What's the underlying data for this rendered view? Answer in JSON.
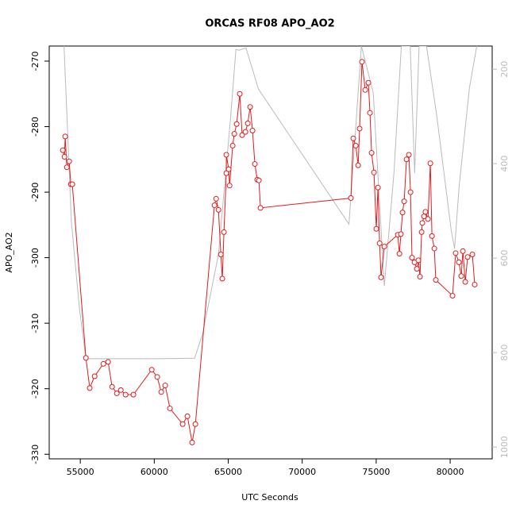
{
  "chart_data": {
    "type": "line",
    "title": "ORCAS RF08 APO_AO2",
    "xlabel": "UTC Seconds",
    "ylabel": "APO_AO2",
    "xlim": [
      52900,
      82840
    ],
    "xticks": [
      55000,
      60000,
      65000,
      70000,
      75000,
      80000
    ],
    "ylim": [
      -330.7,
      -267.7
    ],
    "yticks": [
      -270,
      -280,
      -290,
      -300,
      -310,
      -320,
      -330
    ],
    "y2lim": [
      1025,
      151
    ],
    "y2ticks": [
      200,
      400,
      600,
      800,
      1000
    ],
    "y2color": "#bbbbbb",
    "series": [
      {
        "color": "#bbbbbb",
        "axis": "y2",
        "x": [
          53900,
          54400,
          54950,
          55380,
          60320,
          62730,
          63270,
          64340,
          65150,
          65520,
          65700,
          66200,
          67040,
          73160,
          74000,
          74800,
          75550,
          76200,
          76700,
          77300,
          77600,
          77900,
          78400,
          79100,
          80070,
          80300,
          80600,
          81300,
          81800
        ],
        "values": [
          151,
          524,
          709,
          813,
          813,
          812,
          760,
          592,
          306,
          158,
          160,
          155,
          242,
          528,
          151,
          250,
          659,
          420,
          151,
          151,
          420,
          151,
          151,
          300,
          541,
          580,
          450,
          240,
          151
        ]
      },
      {
        "color": "#e31a1c",
        "marker": "circle",
        "x": [
          53820,
          53930,
          53980,
          54090,
          54250,
          54360,
          54460,
          55380,
          55640,
          55970,
          56560,
          56880,
          57150,
          57470,
          57740,
          58060,
          58590,
          59830,
          60200,
          60470,
          60740,
          61060,
          61920,
          62240,
          62560,
          62780,
          64070,
          64180,
          64340,
          64500,
          64600,
          64710,
          64870,
          64870,
          65030,
          65090,
          65300,
          65410,
          65570,
          65780,
          65940,
          66160,
          66320,
          66480,
          66640,
          66800,
          66960,
          67070,
          67180,
          73290,
          73450,
          73620,
          73780,
          73880,
          74040,
          74260,
          74470,
          74580,
          74690,
          74850,
          75010,
          75120,
          75230,
          75330,
          75550,
          76460,
          76570,
          76670,
          76780,
          76890,
          77050,
          77210,
          77320,
          77420,
          77590,
          77750,
          77850,
          77960,
          78070,
          78120,
          78230,
          78330,
          78500,
          78660,
          78770,
          78930,
          79030,
          80160,
          80370,
          80590,
          80750,
          80860,
          81020,
          81180,
          81500,
          81660
        ],
        "values": [
          -283.6,
          -284.6,
          -281.5,
          -286.2,
          -285.3,
          -288.8,
          -288.8,
          -315.3,
          -319.9,
          -318.1,
          -316.2,
          -315.9,
          -319.7,
          -320.7,
          -320.2,
          -320.9,
          -320.9,
          -317.1,
          -318.2,
          -320.5,
          -319.5,
          -323.0,
          -325.4,
          -324.2,
          -328.2,
          -325.4,
          -292.0,
          -291.0,
          -292.7,
          -299.5,
          -303.2,
          -296.1,
          -287.1,
          -284.3,
          -286.5,
          -289.0,
          -282.9,
          -281.1,
          -279.6,
          -275.0,
          -281.3,
          -280.8,
          -279.5,
          -277.0,
          -280.6,
          -285.7,
          -288.1,
          -288.2,
          -292.4,
          -290.9,
          -281.8,
          -282.9,
          -285.9,
          -280.3,
          -270.1,
          -274.4,
          -273.3,
          -277.9,
          -284.0,
          -287.0,
          -295.6,
          -289.3,
          -297.8,
          -303.0,
          -298.3,
          -296.5,
          -299.4,
          -296.4,
          -293.1,
          -291.4,
          -285.0,
          -284.3,
          -290.0,
          -300.0,
          -300.7,
          -301.7,
          -300.4,
          -302.9,
          -296.1,
          -294.7,
          -293.7,
          -293.0,
          -294.1,
          -285.6,
          -296.7,
          -298.6,
          -303.4,
          -305.8,
          -299.3,
          -300.7,
          -302.8,
          -299.0,
          -303.7,
          -299.9,
          -299.5,
          -304.1
        ]
      }
    ]
  }
}
